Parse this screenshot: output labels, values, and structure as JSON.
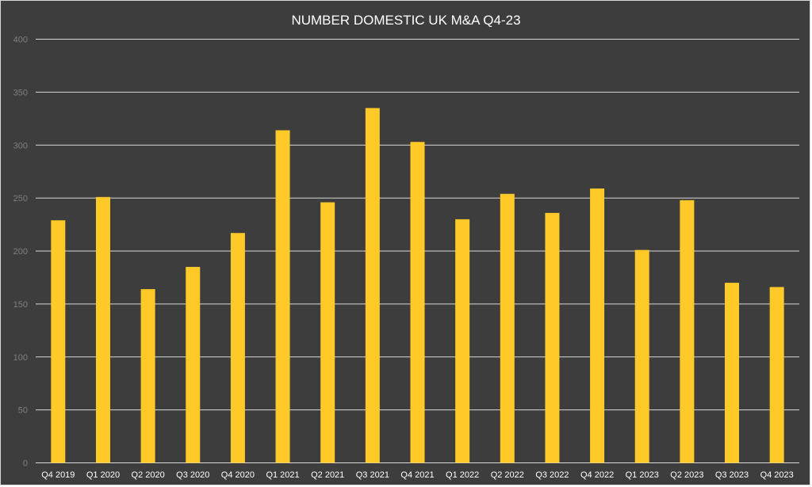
{
  "chart_data": {
    "type": "bar",
    "title": "NUMBER DOMESTIC UK M&A Q4-23",
    "xlabel": "",
    "ylabel": "",
    "categories": [
      "Q4 2019",
      "Q1 2020",
      "Q2 2020",
      "Q3 2020",
      "Q4 2020",
      "Q1 2021",
      "Q2 2021",
      "Q3 2021",
      "Q4 2021",
      "Q1 2022",
      "Q2 2022",
      "Q3 2022",
      "Q4 2022",
      "Q1 2023",
      "Q2 2023",
      "Q3 2023",
      "Q4 2023"
    ],
    "values": [
      229,
      251,
      164,
      185,
      217,
      314,
      246,
      335,
      303,
      230,
      254,
      236,
      259,
      201,
      248,
      170,
      166
    ],
    "ylim": [
      0,
      400
    ],
    "yticks": [
      0,
      50,
      100,
      150,
      200,
      250,
      300,
      350,
      400
    ],
    "grid": true,
    "legend": "none",
    "colors": {
      "background": "#3d3d3d",
      "bar": "#ffca28",
      "gridline": "#d9d9d9",
      "title": "#ffffff",
      "tick_label": "#7f7f7f",
      "category_label": "#ffffff"
    }
  }
}
